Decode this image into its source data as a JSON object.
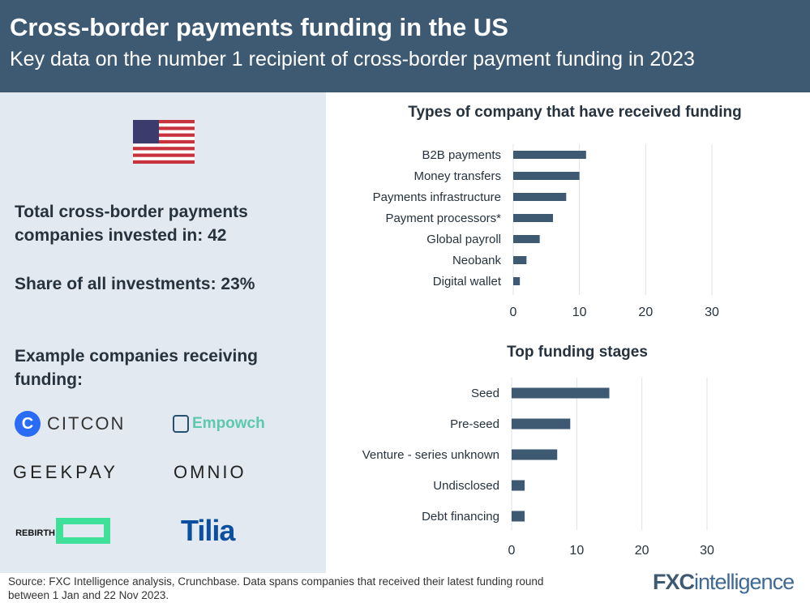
{
  "header": {
    "title": "Cross-border payments funding in the US",
    "subtitle": "Key data on the number 1 recipient of cross-border payment funding in 2023"
  },
  "left": {
    "flag_icon": "us-flag-icon",
    "total_line1": "Total cross-border payments",
    "total_line2": "companies invested in: 42",
    "share": "Share of all investments: 23%",
    "examples_line1": "Example companies receiving",
    "examples_line2": "funding:",
    "logos": [
      "CITCON",
      "Empowch",
      "GEEKPAY",
      "OMNIO",
      "REBIRTH",
      "Tilia"
    ]
  },
  "chart_data": [
    {
      "type": "bar",
      "orientation": "horizontal",
      "title": "Types of company that have received funding",
      "categories": [
        "B2B payments",
        "Money transfers",
        "Payments infrastructure",
        "Payment processors*",
        "Global payroll",
        "Neobank",
        "Digital wallet"
      ],
      "values": [
        11,
        10,
        8,
        6,
        4,
        2,
        1
      ],
      "xlim": [
        0,
        30
      ],
      "xticks": [
        0,
        10,
        20,
        30
      ],
      "grid": true,
      "color": "#3e5a73"
    },
    {
      "type": "bar",
      "orientation": "horizontal",
      "title": "Top  funding stages",
      "categories": [
        "Seed",
        "Pre-seed",
        "Venture - series unknown",
        "Undisclosed",
        "Debt financing"
      ],
      "values": [
        15,
        9,
        7,
        2,
        2
      ],
      "xlim": [
        0,
        30
      ],
      "xticks": [
        0,
        10,
        20,
        30
      ],
      "grid": true,
      "color": "#3e5a73"
    }
  ],
  "footer": {
    "source_line1": "Source: FXC Intelligence analysis, Crunchbase. Data spans companies that received their latest funding round",
    "source_line2": "between 1 Jan and 22 Nov 2023.",
    "brand_a": "FXC",
    "brand_b": "intelligence"
  }
}
